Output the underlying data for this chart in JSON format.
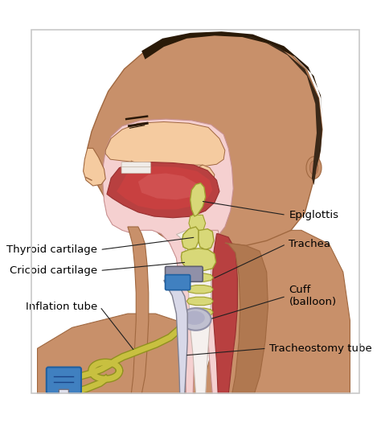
{
  "background_color": "#ffffff",
  "border_color": "#c8c8c8",
  "labels": {
    "epiglottis": "Epiglottis",
    "trachea": "Trachea",
    "thyroid_cartilage": "Thyroid cartilage",
    "cricoid_cartilage": "Cricoid cartilage",
    "cuff_balloon": "Cuff\n(balloon)",
    "inflation_tube": "Inflation tube",
    "tracheostomy_tube": "Tracheostomy tube"
  },
  "skin_color": "#c8906a",
  "skin_outline": "#a06840",
  "skin_light": "#f5cba0",
  "skin_shadow": "#b07850",
  "throat_pink": "#f5d0d0",
  "throat_outline": "#c89090",
  "tissue_red": "#b84040",
  "tissue_dark": "#983030",
  "cartilage_yellow": "#d8d878",
  "cartilage_outline": "#a0a030",
  "tube_blue": "#4080c0",
  "tube_blue_dark": "#2060a0",
  "tube_gray": "#9090a8",
  "tube_gray_light": "#c0c0d0",
  "inflation_yellow": "#c8c040",
  "inflation_outline": "#909020",
  "hair_color": "#2a1a08",
  "hair_color2": "#3a2818",
  "nasal_pink": "#fce0e0",
  "ear_color": "#c08060"
}
